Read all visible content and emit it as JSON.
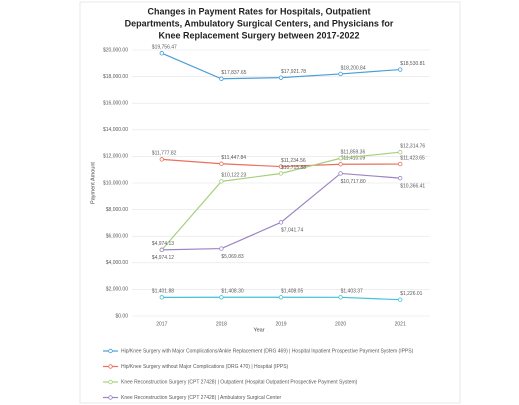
{
  "chart_data": {
    "type": "line",
    "title": [
      "Changes in Payment Rates for Hospitals, Outpatient",
      "Departments, Ambulatory Surgical Centers, and Physicians for",
      "Knee Replacement Surgery between 2017-2022"
    ],
    "x_label": "Year",
    "y_label": "Payment Amount",
    "categories": [
      "2017",
      "2018",
      "2019",
      "2020",
      "2021"
    ],
    "ylim": [
      0,
      20000
    ],
    "yticks": [
      {
        "value": 0,
        "label": "$0.00"
      },
      {
        "value": 2000,
        "label": "$2,000.00"
      },
      {
        "value": 4000,
        "label": "$4,000.00"
      },
      {
        "value": 6000,
        "label": "$6,000.00"
      },
      {
        "value": 8000,
        "label": "$8,000.00"
      },
      {
        "value": 10000,
        "label": "$10,000.00"
      },
      {
        "value": 12000,
        "label": "$12,000.00"
      },
      {
        "value": 14000,
        "label": "$14,000.00"
      },
      {
        "value": 16000,
        "label": "$16,000.00"
      },
      {
        "value": 18000,
        "label": "$18,000.00"
      },
      {
        "value": 20000,
        "label": "$20,000.00"
      }
    ],
    "grid": true,
    "series": [
      {
        "name": "Hip/Knee Surgery with Major Complications/Ankle Replacement (DRG 469) | Hospital Inpatient Prospective Payment System (IPPS)",
        "color": "#4a9fd8",
        "values": [
          19756.47,
          17837.65,
          17921.78,
          18200.84,
          18530.81
        ],
        "value_labels": [
          "$19,756.47",
          "$17,837.65",
          "$17,921.78",
          "$18,200.84",
          "$18,530.81"
        ]
      },
      {
        "name": "Hip/Knee Surgery without Major Complications (DRG 470) | Hospital (IPPS)",
        "color": "#e8705f",
        "values": [
          11777.82,
          11447.84,
          11234.56,
          11410.09,
          11423.65
        ],
        "value_labels": [
          "$11,777.82",
          "$11,447.84",
          "$11,234.56",
          "$11,410.09",
          "$11,423.65"
        ]
      },
      {
        "name": "Knee Reconstruction Surgery (CPT 27428) | Outpatient (Hospital Outpatient Prospective Payment System)",
        "color": "#a9cf7e",
        "values": [
          4974.13,
          10122.23,
          10715.88,
          11859.36,
          12314.76
        ],
        "value_labels": [
          "$4,974.13",
          "$10,122.23",
          "$10,715.88",
          "$11,859.36",
          "$12,314.76"
        ]
      },
      {
        "name": "Knee Reconstruction Surgery (CPT 27428) | Ambulatory Surgical Center",
        "color": "#9b86c4",
        "values": [
          4974.12,
          5069.83,
          7041.74,
          10717.8,
          10366.41
        ],
        "value_labels": [
          "$4,974.12",
          "$5,069.83",
          "$7,041.74",
          "$10,717.80",
          "$10,366.41"
        ]
      },
      {
        "color": "#3fc3d6",
        "values": [
          1401.88,
          1408.3,
          1408.05,
          1403.37,
          1226.01
        ],
        "value_labels": [
          "$1,401.88",
          "$1,408.30",
          "$1,408.05",
          "$1,403.37",
          "$1,226.01"
        ]
      }
    ]
  }
}
